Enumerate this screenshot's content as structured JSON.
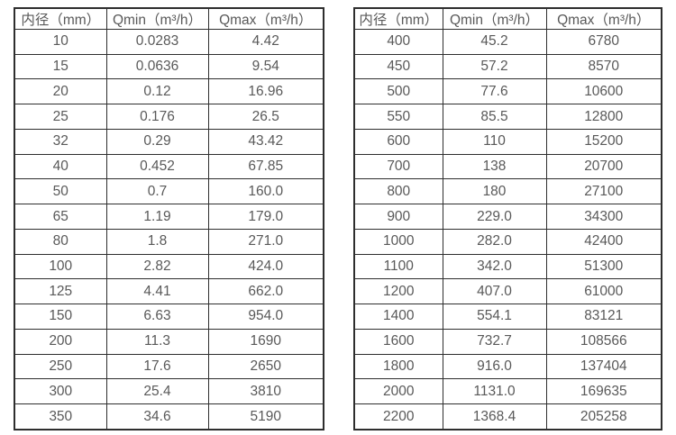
{
  "colors": {
    "background": "#ffffff",
    "text": "#595959",
    "border": "#2e2e2e"
  },
  "tables": [
    {
      "name": "small-diameter-flow-table",
      "headers": [
        "内径（mm）",
        "Qmin（m³/h）",
        "Qmax（m³/h）"
      ],
      "rows": [
        [
          "10",
          "0.0283",
          "4.42"
        ],
        [
          "15",
          "0.0636",
          "9.54"
        ],
        [
          "20",
          "0.12",
          "16.96"
        ],
        [
          "25",
          "0.176",
          "26.5"
        ],
        [
          "32",
          "0.29",
          "43.42"
        ],
        [
          "40",
          "0.452",
          "67.85"
        ],
        [
          "50",
          "0.7",
          "160.0"
        ],
        [
          "65",
          "1.19",
          "179.0"
        ],
        [
          "80",
          "1.8",
          "271.0"
        ],
        [
          "100",
          "2.82",
          "424.0"
        ],
        [
          "125",
          "4.41",
          "662.0"
        ],
        [
          "150",
          "6.63",
          "954.0"
        ],
        [
          "200",
          "11.3",
          "1690"
        ],
        [
          "250",
          "17.6",
          "2650"
        ],
        [
          "300",
          "25.4",
          "3810"
        ],
        [
          "350",
          "34.6",
          "5190"
        ]
      ]
    },
    {
      "name": "large-diameter-flow-table",
      "headers": [
        "内径（mm）",
        "Qmin（m³/h）",
        "Qmax（m³/h）"
      ],
      "rows": [
        [
          "400",
          "45.2",
          "6780"
        ],
        [
          "450",
          "57.2",
          "8570"
        ],
        [
          "500",
          "77.6",
          "10600"
        ],
        [
          "550",
          "85.5",
          "12800"
        ],
        [
          "600",
          "110",
          "15200"
        ],
        [
          "700",
          "138",
          "20700"
        ],
        [
          "800",
          "180",
          "27100"
        ],
        [
          "900",
          "229.0",
          "34300"
        ],
        [
          "1000",
          "282.0",
          "42400"
        ],
        [
          "1100",
          "342.0",
          "51300"
        ],
        [
          "1200",
          "407.0",
          "61000"
        ],
        [
          "1400",
          "554.1",
          "83121"
        ],
        [
          "1600",
          "732.7",
          "108566"
        ],
        [
          "1800",
          "916.0",
          "137404"
        ],
        [
          "2000",
          "1131.0",
          "169635"
        ],
        [
          "2200",
          "1368.4",
          "205258"
        ]
      ]
    }
  ]
}
